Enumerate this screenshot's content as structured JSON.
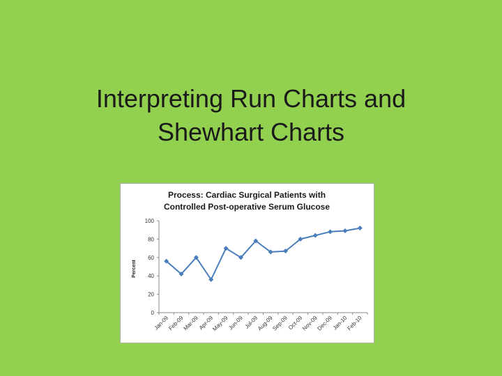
{
  "slide": {
    "title_line1": "Interpreting Run Charts and",
    "title_line2": "Shewhart Charts"
  },
  "chart_data": {
    "type": "line",
    "title_line1": "Process: Cardiac Surgical Patients with",
    "title_line2": "Controlled Post-operative Serum Glucose",
    "ylabel": "Percent",
    "xlabel": "",
    "categories": [
      "Jan-09",
      "Feb-09",
      "Mar-09",
      "Apr-09",
      "May-09",
      "Jun-09",
      "Jul-09",
      "Aug-09",
      "Sep-09",
      "Oct-09",
      "Nov-09",
      "Dec-09",
      "Jan-10",
      "Feb-10"
    ],
    "series": [
      {
        "values": [
          56,
          42,
          60,
          36,
          70,
          60,
          78,
          66,
          67,
          80,
          84,
          88,
          89,
          92
        ]
      }
    ],
    "ylim": [
      0,
      100
    ],
    "yticks": [
      0,
      20,
      40,
      60,
      80,
      100
    ],
    "grid": false,
    "legend": "none",
    "line_color": "#4a7ebb"
  }
}
